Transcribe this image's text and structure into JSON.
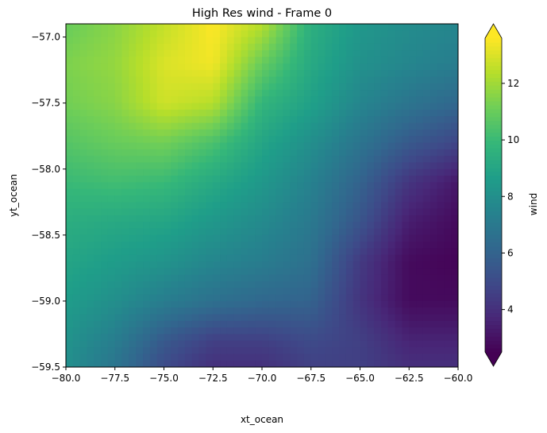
{
  "chart_data": {
    "type": "heatmap",
    "title": "High Res wind - Frame 0",
    "xlabel": "xt_ocean",
    "ylabel": "yt_ocean",
    "colorbar_label": "wind",
    "colormap": "viridis",
    "xlim": [
      -80.0,
      -60.0
    ],
    "ylim": [
      -59.5,
      -56.9
    ],
    "clim": [
      2.5,
      13.6
    ],
    "extend": "both",
    "x_ticks": [
      -80.0,
      -77.5,
      -75.0,
      -72.5,
      -70.0,
      -67.5,
      -65.0,
      -62.5,
      -60.0
    ],
    "x_tick_labels": [
      "−80.0",
      "−77.5",
      "−75.0",
      "−72.5",
      "−70.0",
      "−67.5",
      "−65.0",
      "−62.5",
      "−60.0"
    ],
    "y_ticks": [
      -57.0,
      -57.5,
      -58.0,
      -58.5,
      -59.0,
      -59.5
    ],
    "y_tick_labels": [
      "−57.0",
      "−57.5",
      "−58.0",
      "−58.5",
      "−59.0",
      "−59.5"
    ],
    "colorbar_ticks": [
      4,
      6,
      8,
      10,
      12
    ],
    "colorbar_tick_labels": [
      "4",
      "6",
      "8",
      "10",
      "12"
    ],
    "grid": false,
    "x": [
      -80,
      -77.5,
      -75,
      -72.5,
      -70,
      -67.5,
      -65,
      -62.5,
      -60
    ],
    "y": [
      -56.9,
      -57.2,
      -57.5,
      -57.8,
      -58.1,
      -58.4,
      -58.7,
      -59.0,
      -59.3,
      -59.5
    ],
    "values": [
      [
        11.0,
        11.6,
        12.6,
        13.6,
        12.4,
        9.5,
        8.4,
        7.9,
        7.6
      ],
      [
        11.4,
        11.8,
        13.0,
        13.4,
        11.0,
        9.2,
        8.1,
        7.6,
        7.2
      ],
      [
        11.2,
        11.6,
        12.8,
        12.4,
        9.8,
        8.8,
        7.6,
        6.8,
        6.2
      ],
      [
        10.6,
        11.0,
        11.2,
        10.4,
        9.0,
        8.0,
        6.8,
        5.6,
        4.8
      ],
      [
        10.0,
        10.2,
        10.0,
        9.2,
        8.4,
        7.4,
        6.0,
        4.2,
        3.2
      ],
      [
        9.4,
        9.2,
        9.0,
        8.4,
        7.8,
        7.0,
        5.4,
        3.4,
        2.8
      ],
      [
        9.0,
        8.6,
        8.2,
        7.6,
        7.2,
        6.6,
        4.4,
        2.8,
        2.6
      ],
      [
        8.6,
        8.0,
        7.2,
        6.6,
        6.2,
        6.0,
        4.2,
        2.8,
        2.8
      ],
      [
        8.2,
        7.2,
        5.6,
        4.6,
        4.6,
        5.0,
        4.6,
        3.6,
        3.6
      ],
      [
        8.0,
        6.8,
        5.0,
        4.0,
        4.0,
        4.6,
        4.6,
        4.0,
        4.0
      ]
    ]
  }
}
